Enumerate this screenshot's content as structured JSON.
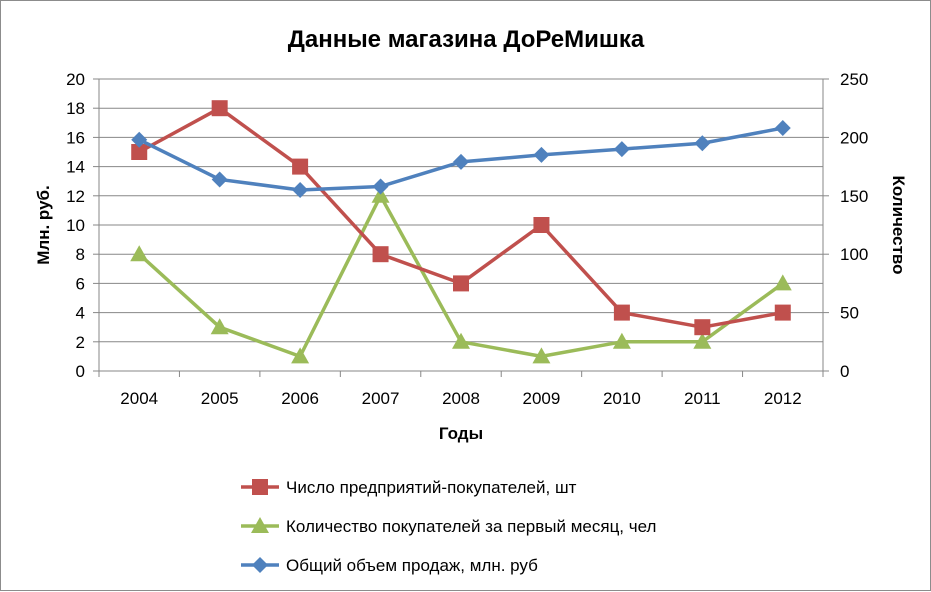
{
  "chart_data": {
    "type": "line",
    "title": "Данные магазина ДоРеМишка",
    "xlabel": "Годы",
    "ylabel_left": "Млн. руб.",
    "ylabel_right": "Количество",
    "categories": [
      "2004",
      "2005",
      "2006",
      "2007",
      "2008",
      "2009",
      "2010",
      "2011",
      "2012"
    ],
    "ylim_left": [
      0,
      20
    ],
    "yticks_left": [
      0,
      2,
      4,
      6,
      8,
      10,
      12,
      14,
      16,
      18,
      20
    ],
    "ylim_right": [
      0,
      250
    ],
    "yticks_right": [
      0,
      50,
      100,
      150,
      200,
      250
    ],
    "grid": true,
    "legend": "bottom",
    "series": [
      {
        "name": "Число предприятий-покупателей, шт",
        "axis": "left",
        "marker": "square",
        "color": "#c0504d",
        "values": [
          15,
          18,
          14,
          8,
          6,
          10,
          4,
          3,
          4
        ]
      },
      {
        "name": "Количество покупателей за первый месяц, чел",
        "axis": "left",
        "marker": "triangle",
        "color": "#9bbb59",
        "values": [
          8,
          3,
          1,
          12,
          2,
          1,
          2,
          2,
          6
        ]
      },
      {
        "name": "Общий объем продаж, млн. руб",
        "axis": "right",
        "marker": "diamond",
        "color": "#4f81bd",
        "values": [
          198,
          164,
          155,
          158,
          179,
          185,
          190,
          195,
          208
        ]
      }
    ]
  }
}
